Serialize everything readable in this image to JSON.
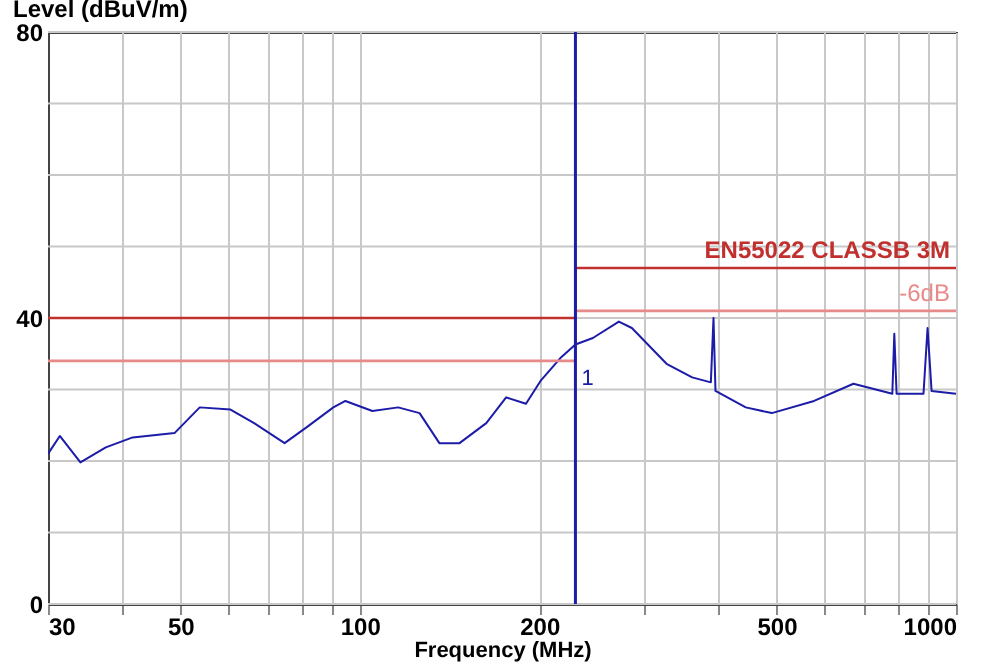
{
  "chart_data": {
    "type": "line",
    "xlabel": "Frequency (MHz)",
    "ylabel": "Level (dBuV/m)",
    "log": "x",
    "grid": true,
    "xlim": [
      30,
      1000
    ],
    "ylim": [
      0,
      80
    ],
    "xticks": [
      30,
      {
        "value": 40,
        "label": null
      },
      50,
      {
        "value": 60,
        "label": null
      },
      {
        "value": 70,
        "label": null
      },
      {
        "value": 80,
        "label": null
      },
      {
        "value": 90,
        "label": null
      },
      100,
      200,
      {
        "value": 300,
        "label": null
      },
      {
        "value": 400,
        "label": null
      },
      500,
      {
        "value": 600,
        "label": null
      },
      {
        "value": 700,
        "label": null
      },
      {
        "value": 800,
        "label": null
      },
      {
        "value": 900,
        "label": null
      },
      1000
    ],
    "yticks": [
      0,
      {
        "value": 10,
        "label": null
      },
      {
        "value": 20,
        "label": null
      },
      {
        "value": 30,
        "label": null
      },
      40,
      {
        "value": 50,
        "label": null
      },
      {
        "value": 60,
        "label": null
      },
      {
        "value": 70,
        "label": null
      },
      80
    ],
    "series": [
      {
        "color": "#1c1ca8",
        "x": [
          30,
          31.4,
          34,
          37.5,
          41.6,
          48.9,
          53.9,
          60.7,
          66.5,
          74.8,
          81.4,
          90.3,
          94.6,
          105,
          116,
          126,
          136,
          147,
          163,
          176,
          190,
          201,
          217,
          230,
          246,
          272,
          286,
          327,
          361,
          388,
          392,
          395,
          444,
          491,
          578,
          673,
          782,
          788,
          795,
          882,
          896,
          910,
          1000
        ],
        "values": [
          21,
          23.5,
          19.8,
          21.9,
          23.3,
          23.9,
          27.5,
          27.2,
          25.3,
          22.5,
          24.7,
          27.5,
          28.4,
          27,
          27.5,
          26.7,
          22.5,
          22.5,
          25.3,
          28.9,
          28,
          31.2,
          34.4,
          36.3,
          37.2,
          39.5,
          38.6,
          33.6,
          31.7,
          31,
          40,
          29.8,
          27.5,
          26.7,
          28.4,
          30.8,
          29.4,
          37.8,
          29.4,
          29.4,
          38.6,
          29.8,
          29.4
        ]
      },
      {
        "type": "step",
        "name": "EN55022 CLASSB 3M",
        "color": "#c0302f",
        "x": [
          30,
          230,
          1000
        ],
        "values": [
          40,
          47,
          47
        ]
      },
      {
        "type": "step",
        "name": "-6dB",
        "color": "#e8898a",
        "x": [
          30,
          230,
          1000
        ],
        "values": [
          34,
          41,
          41
        ]
      }
    ],
    "ref_lines": [
      {
        "axis": "x",
        "value": 230,
        "color": "#1c1ca8"
      }
    ],
    "annotations": [
      {
        "text": "1",
        "x": 230,
        "y": 34
      }
    ]
  }
}
